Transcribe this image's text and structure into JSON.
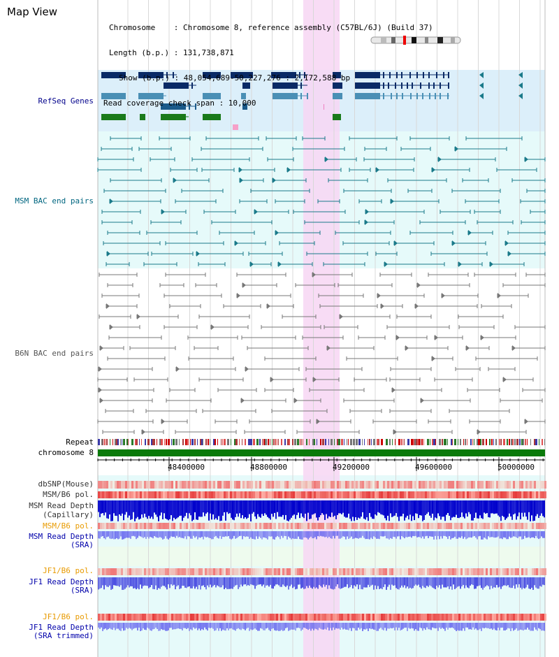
{
  "page": {
    "title": "Map View"
  },
  "info": {
    "chromosome": "Chromosome    : Chromosome 8, reference assembly (C57BL/6J) (Build 37)",
    "length": "Length (b.p.) : 131,738,871",
    "show": "Show (b.p.) : 48,054,689-50,227,276 : 2,172,588 bp",
    "span": "Read coverage check span : 10,000"
  },
  "tracks": {
    "refseq": "RefSeq Genes",
    "msm_bac": "MSM BAC end pairs",
    "b6n_bac": "B6N BAC end pairs",
    "repeat": "Repeat",
    "chromosome": "chromosome 8",
    "dbsnp": "dbSNP(Mouse)",
    "msm_b6_pol_1": "MSM/B6 pol.",
    "msm_depth_cap_1": "MSM Read Depth",
    "msm_depth_cap_2": "(Capillary)",
    "msm_b6_pol_2": "MSM/B6 pol.",
    "msm_depth_sra_1": "MSM Read Depth",
    "msm_depth_sra_2": "(SRA)",
    "jf1_b6_pol_1": "JF1/B6 pol.",
    "jf1_depth_sra_1": "JF1 Read Depth",
    "jf1_depth_sra_2": "(SRA)",
    "jf1_b6_pol_2": "JF1/B6 pol.",
    "jf1_depth_trim_1": "JF1 Read Depth",
    "jf1_depth_trim_2": "(SRA trimmed)"
  },
  "axis": {
    "ticks": [
      "48400000",
      "48800000",
      "49200000",
      "49600000",
      "50000000"
    ]
  },
  "colors": {
    "refseq_label": "#00008b",
    "msm_label": "#006680",
    "b6n_label": "#555555",
    "pol_orange": "#e89a00",
    "depth_blue": "#0000aa",
    "highlight": "#f7d6f3"
  }
}
